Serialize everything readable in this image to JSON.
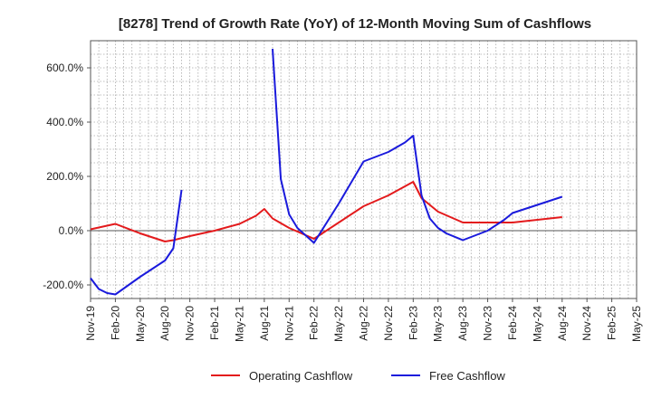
{
  "chart_data": {
    "type": "line",
    "title": "[8278]  Trend of Growth Rate (YoY) of 12-Month Moving Sum of Cashflows",
    "xlabel": "",
    "ylabel": "",
    "ylim": [
      -250,
      700
    ],
    "y_ticks": [
      {
        "value": 600,
        "label": "600.0%"
      },
      {
        "value": 400,
        "label": "400.0%"
      },
      {
        "value": 200,
        "label": "200.0%"
      },
      {
        "value": 0,
        "label": "0.0%"
      },
      {
        "value": -200,
        "label": "-200.0%"
      }
    ],
    "x_ticks": [
      "Nov-19",
      "Feb-20",
      "May-20",
      "Aug-20",
      "Nov-20",
      "Feb-21",
      "May-21",
      "Aug-21",
      "Nov-21",
      "Feb-22",
      "May-22",
      "Aug-22",
      "Nov-22",
      "Feb-23",
      "May-23",
      "Aug-23",
      "Nov-23",
      "Feb-24",
      "May-24",
      "Aug-24",
      "Nov-24",
      "Feb-25",
      "May-25"
    ],
    "x_range_months": [
      "2019-11",
      "2025-05"
    ],
    "grid": true,
    "legend_position": "bottom",
    "series": [
      {
        "name": "Operating Cashflow",
        "color": "#e31a1c",
        "points": [
          [
            "2019-11",
            5
          ],
          [
            "2020-02",
            25
          ],
          [
            "2020-05",
            -10
          ],
          [
            "2020-08",
            -40
          ],
          [
            "2020-09",
            -35
          ],
          [
            "2020-11",
            -20
          ],
          [
            "2021-02",
            0
          ],
          [
            "2021-05",
            25
          ],
          [
            "2021-07",
            55
          ],
          [
            "2021-08",
            80
          ],
          [
            "2021-09",
            45
          ],
          [
            "2021-11",
            10
          ],
          [
            "2022-02",
            -30
          ],
          [
            "2022-05",
            30
          ],
          [
            "2022-08",
            90
          ],
          [
            "2022-11",
            130
          ],
          [
            "2023-02",
            180
          ],
          [
            "2023-03",
            120
          ],
          [
            "2023-05",
            70
          ],
          [
            "2023-08",
            30
          ],
          [
            "2023-11",
            30
          ],
          [
            "2024-02",
            30
          ],
          [
            "2024-05",
            40
          ],
          [
            "2024-08",
            50
          ]
        ]
      },
      {
        "name": "Free Cashflow",
        "color": "#1a1adc",
        "points": [
          [
            "2019-11",
            -175
          ],
          [
            "2019-12",
            -215
          ],
          [
            "2020-01",
            -230
          ],
          [
            "2020-02",
            -235
          ],
          [
            "2020-05",
            -170
          ],
          [
            "2020-08",
            -110
          ],
          [
            "2020-09",
            -65
          ],
          [
            "2020-10",
            150
          ],
          null,
          [
            "2021-09",
            670
          ],
          [
            "2021-10",
            190
          ],
          [
            "2021-11",
            60
          ],
          [
            "2021-12",
            10
          ],
          [
            "2022-02",
            -45
          ],
          [
            "2022-05",
            100
          ],
          [
            "2022-08",
            255
          ],
          [
            "2022-11",
            290
          ],
          [
            "2023-01",
            325
          ],
          [
            "2023-02",
            350
          ],
          [
            "2023-03",
            130
          ],
          [
            "2023-04",
            45
          ],
          [
            "2023-05",
            10
          ],
          [
            "2023-06",
            -10
          ],
          [
            "2023-08",
            -35
          ],
          [
            "2023-11",
            0
          ],
          [
            "2024-01",
            40
          ],
          [
            "2024-02",
            65
          ],
          [
            "2024-05",
            95
          ],
          [
            "2024-08",
            125
          ]
        ]
      }
    ]
  }
}
